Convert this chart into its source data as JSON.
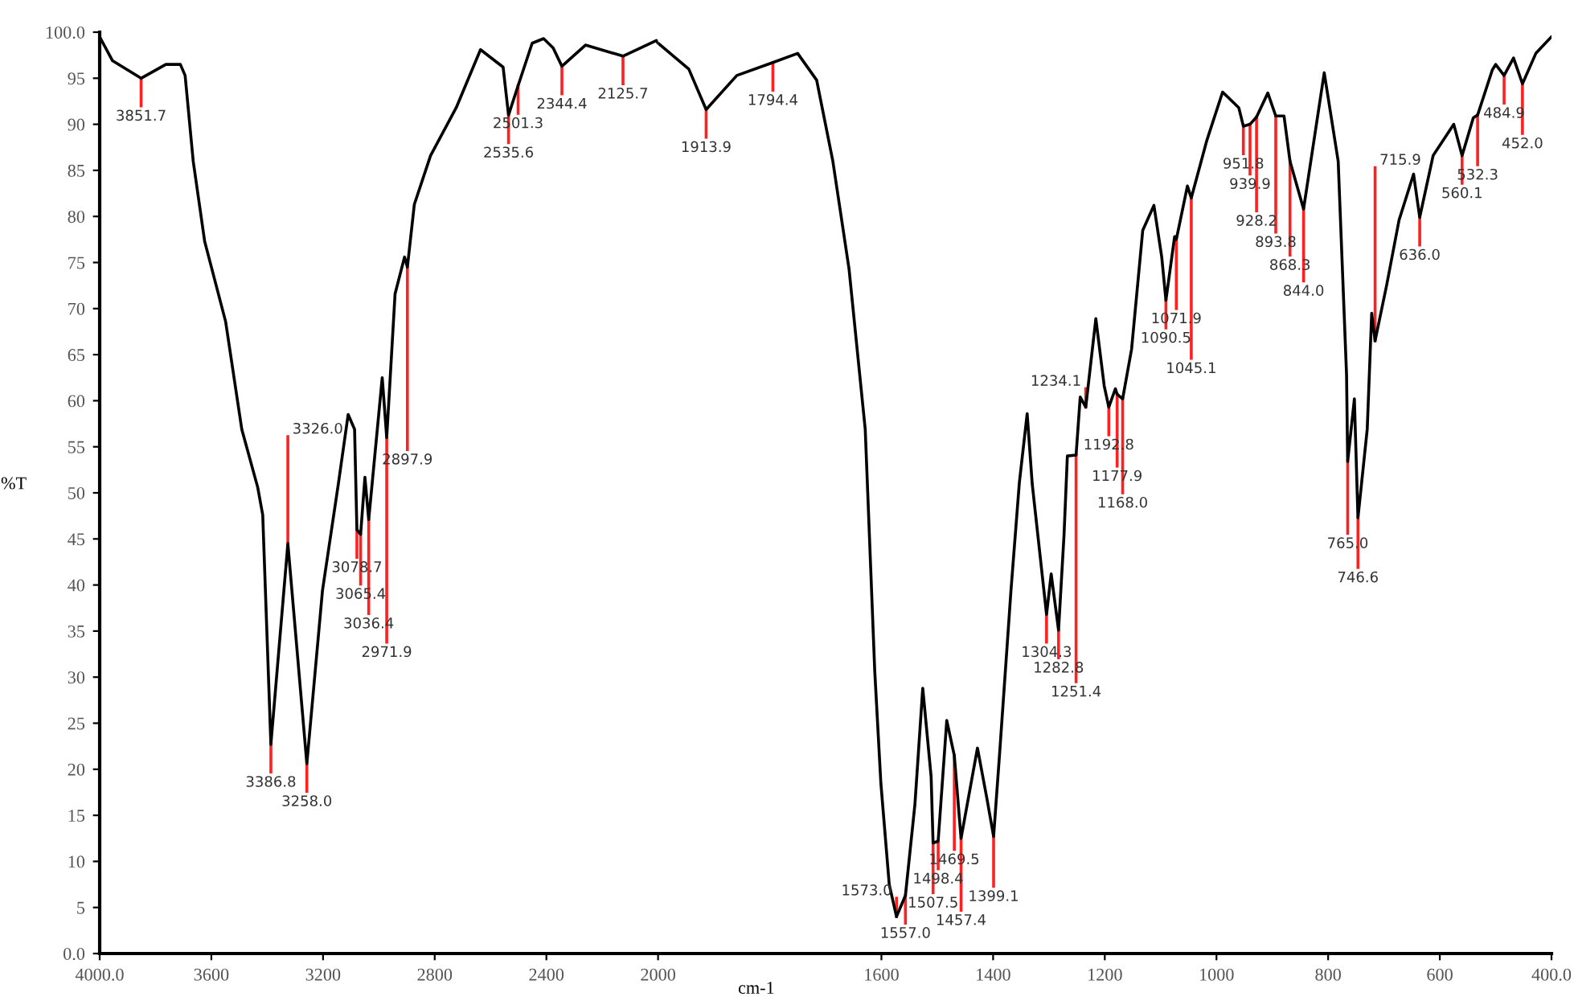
{
  "chart_data": [
    {
      "type": "line",
      "ylabel": "%T",
      "x": [
        4000,
        3954,
        3851.7,
        3763,
        3711,
        3694,
        3665,
        3624,
        3549,
        3491,
        3434,
        3416,
        3386.8,
        3326.0,
        3258.0,
        3202,
        3145,
        3110,
        3087,
        3078.7,
        3065.4,
        3050,
        3036.4,
        2988,
        2971.9,
        2942,
        2908,
        2897.9,
        2873,
        2815,
        2723,
        2636,
        2555,
        2535.6,
        2501.3,
        2451,
        2410,
        2376,
        2344.4,
        2260,
        2125.7,
        2006,
        2000
      ],
      "series": [
        {
          "color": "#000000",
          "values": [
            99.5,
            96.9,
            95.0,
            96.5,
            96.5,
            95.3,
            86.0,
            77.3,
            68.6,
            56.9,
            50.6,
            47.6,
            22.7,
            44.5,
            20.6,
            39.4,
            51.0,
            58.5,
            56.9,
            46.0,
            45.5,
            51.7,
            47.1,
            62.5,
            56.0,
            71.6,
            75.6,
            74.5,
            81.3,
            86.6,
            91.8,
            98.1,
            96.2,
            91.0,
            94.2,
            98.8,
            99.3,
            98.3,
            96.3,
            98.6,
            97.4,
            99.1,
            98.8
          ]
        }
      ],
      "xlim": [
        4000,
        2000
      ],
      "xticks": [
        {
          "value": 4000,
          "label": "4000.0"
        },
        3600,
        3200,
        2800,
        2400,
        2000
      ],
      "ylim": [
        0,
        100
      ],
      "yticks": [
        {
          "value": 0,
          "label": "0.0"
        },
        5,
        10,
        15,
        20,
        25,
        30,
        35,
        40,
        45,
        50,
        55,
        60,
        65,
        70,
        75,
        80,
        85,
        90,
        95,
        {
          "value": 100,
          "label": "100.0"
        }
      ],
      "grid": false,
      "legend": false,
      "marker": "none",
      "line_style": "solid",
      "annotations": [
        {
          "text": "3851.7",
          "x": 3851.7,
          "y": 95.0
        },
        {
          "text": "3386.8",
          "x": 3386.8,
          "y": 22.7
        },
        {
          "text": "3326.0",
          "x": 3326.0,
          "y": 44.5
        },
        {
          "text": "3258.0",
          "x": 3258.0,
          "y": 20.6
        },
        {
          "text": "3078.7",
          "x": 3078.7,
          "y": 46.0
        },
        {
          "text": "3065.4",
          "x": 3065.4,
          "y": 45.5
        },
        {
          "text": "3036.4",
          "x": 3036.4,
          "y": 47.1
        },
        {
          "text": "2971.9",
          "x": 2971.9,
          "y": 56.0
        },
        {
          "text": "2897.9",
          "x": 2897.9,
          "y": 74.5
        },
        {
          "text": "2535.6",
          "x": 2535.6,
          "y": 91.0
        },
        {
          "text": "2501.3",
          "x": 2501.3,
          "y": 94.2
        },
        {
          "text": "2344.4",
          "x": 2344.4,
          "y": 96.3
        },
        {
          "text": "2125.7",
          "x": 2125.7,
          "y": 97.4
        }
      ]
    },
    {
      "type": "line",
      "xlabel": "cm-1",
      "x": [
        2000,
        1945,
        1913.9,
        1859,
        1794.4,
        1750,
        1716,
        1687,
        1658,
        1629,
        1612,
        1601,
        1586,
        1573.0,
        1557.0,
        1540,
        1526,
        1511,
        1507.5,
        1498.4,
        1483,
        1469.5,
        1457.4,
        1428,
        1411,
        1399.1,
        1388,
        1368,
        1353,
        1339,
        1330,
        1304.3,
        1296,
        1282.8,
        1273,
        1267,
        1251.4,
        1244,
        1234.1,
        1216,
        1201,
        1192.8,
        1181,
        1177.9,
        1168.0,
        1152,
        1132,
        1112,
        1098,
        1090.5,
        1075,
        1071.9,
        1052,
        1045.1,
        1017,
        989,
        960,
        951.8,
        939.9,
        928.2,
        908,
        893.8,
        879,
        868.3,
        844.0,
        807,
        782,
        767,
        765.0,
        753,
        746.6,
        730,
        722,
        715.9,
        695,
        673,
        647,
        636.0,
        612,
        575,
        560.1,
        540,
        532.3,
        506,
        500,
        484.9,
        468,
        452.0,
        428,
        400
      ],
      "series": [
        {
          "color": "#000000",
          "values": [
            98.8,
            96.0,
            91.6,
            95.3,
            96.7,
            97.7,
            94.8,
            86.0,
            74.3,
            56.9,
            30.7,
            18.5,
            7.5,
            4.0,
            6.3,
            16.2,
            28.8,
            19.2,
            12.0,
            12.2,
            25.3,
            21.5,
            12.5,
            22.3,
            16.8,
            12.7,
            22.0,
            39.4,
            51.1,
            58.6,
            51.0,
            36.8,
            41.2,
            35.1,
            45.4,
            54.0,
            54.1,
            60.4,
            59.3,
            68.9,
            61.6,
            59.3,
            61.3,
            60.7,
            60.2,
            65.6,
            78.5,
            81.2,
            75.6,
            70.9,
            77.8,
            77.5,
            83.3,
            82.0,
            88.3,
            93.5,
            91.8,
            89.8,
            90.0,
            90.8,
            93.4,
            90.9,
            90.9,
            86.0,
            80.8,
            95.6,
            86.0,
            62.8,
            53.4,
            60.2,
            47.3,
            56.9,
            69.5,
            66.5,
            72.6,
            79.6,
            84.6,
            79.9,
            86.6,
            90.0,
            86.6,
            90.7,
            91.0,
            95.9,
            96.5,
            95.3,
            97.2,
            94.4,
            97.7,
            99.5
          ]
        }
      ],
      "xlim": [
        2000,
        400
      ],
      "xticks": [
        1600,
        1400,
        1200,
        1000,
        800,
        600,
        {
          "value": 400,
          "label": "400.0"
        }
      ],
      "ylim": [
        0,
        100
      ],
      "tick_labels": "x",
      "grid": false,
      "legend": false,
      "marker": "none",
      "line_style": "solid",
      "annotations": [
        {
          "text": "1913.9",
          "x": 1913.9,
          "y": 91.6
        },
        {
          "text": "1794.4",
          "x": 1794.4,
          "y": 96.7
        },
        {
          "text": "1573.0",
          "x": 1573.0,
          "y": 4.0
        },
        {
          "text": "1557.0",
          "x": 1557.0,
          "y": 6.3
        },
        {
          "text": "1507.5",
          "x": 1507.5,
          "y": 12.0
        },
        {
          "text": "1498.4",
          "x": 1498.4,
          "y": 12.2
        },
        {
          "text": "1469.5",
          "x": 1469.5,
          "y": 21.5
        },
        {
          "text": "1457.4",
          "x": 1457.4,
          "y": 12.5
        },
        {
          "text": "1399.1",
          "x": 1399.1,
          "y": 12.7
        },
        {
          "text": "1304.3",
          "x": 1304.3,
          "y": 36.8
        },
        {
          "text": "1282.8",
          "x": 1282.8,
          "y": 35.1
        },
        {
          "text": "1251.4",
          "x": 1251.4,
          "y": 54.1
        },
        {
          "text": "1234.1",
          "x": 1234.1,
          "y": 59.3
        },
        {
          "text": "1192.8",
          "x": 1192.8,
          "y": 59.3
        },
        {
          "text": "1177.9",
          "x": 1177.9,
          "y": 60.7
        },
        {
          "text": "1168.0",
          "x": 1168.0,
          "y": 60.2
        },
        {
          "text": "1090.5",
          "x": 1090.5,
          "y": 70.9
        },
        {
          "text": "1071.9",
          "x": 1071.9,
          "y": 77.8
        },
        {
          "text": "1045.1",
          "x": 1045.1,
          "y": 82.0
        },
        {
          "text": "951.8",
          "x": 951.8,
          "y": 89.8
        },
        {
          "text": "939.9",
          "x": 939.9,
          "y": 90.0
        },
        {
          "text": "928.2",
          "x": 928.2,
          "y": 90.8
        },
        {
          "text": "893.8",
          "x": 893.8,
          "y": 90.9
        },
        {
          "text": "868.3",
          "x": 868.3,
          "y": 86.0
        },
        {
          "text": "844.0",
          "x": 844.0,
          "y": 80.8
        },
        {
          "text": "765.0",
          "x": 765.0,
          "y": 53.4
        },
        {
          "text": "746.6",
          "x": 746.6,
          "y": 47.3
        },
        {
          "text": "715.9",
          "x": 715.9,
          "y": 66.5
        },
        {
          "text": "636.0",
          "x": 636.0,
          "y": 79.9
        },
        {
          "text": "560.1",
          "x": 560.1,
          "y": 86.6
        },
        {
          "text": "532.3",
          "x": 532.3,
          "y": 91.0
        },
        {
          "text": "484.9",
          "x": 484.9,
          "y": 95.3
        },
        {
          "text": "452.0",
          "x": 452.0,
          "y": 94.4
        }
      ]
    }
  ]
}
